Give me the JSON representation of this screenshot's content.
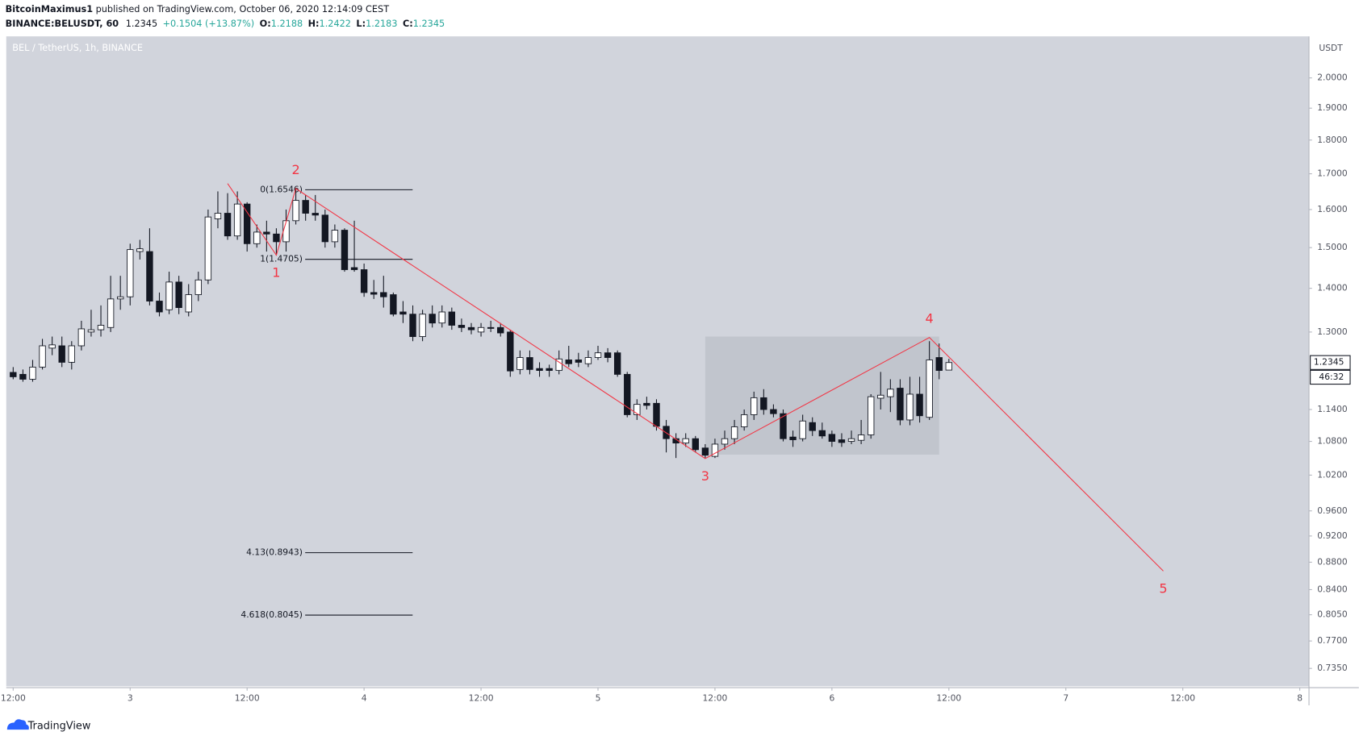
{
  "chart_data": {
    "type": "candlestick",
    "header": {
      "author": "BitcoinMaximus1",
      "published": " published on TradingView.com, October 06, 2020 12:14:09 CEST",
      "symbol": "BINANCE:BELUSDT, 60",
      "last": "1.2345",
      "change": "+0.1504 (+13.87%)",
      "ohlc": [
        {
          "key": "O:",
          "value": "1.2188"
        },
        {
          "key": "H:",
          "value": "1.2422"
        },
        {
          "key": "L:",
          "value": "1.2183"
        },
        {
          "key": "C:",
          "value": "1.2345"
        }
      ]
    },
    "title": "BEL / TetherUS, 1h, BINANCE",
    "y_unit": "USDT",
    "footer": "TradingView",
    "log_scale": true,
    "up_color": "#ffffff",
    "down_color": "#131722",
    "background": "#d1d4dc",
    "xlim": [
      -0.71,
      132.9
    ],
    "xticks": [
      {
        "value": 0,
        "label": "12:00"
      },
      {
        "value": 12,
        "label": "3"
      },
      {
        "value": 24,
        "label": "12:00"
      },
      {
        "value": 36,
        "label": "4"
      },
      {
        "value": 48,
        "label": "12:00"
      },
      {
        "value": 60,
        "label": "5"
      },
      {
        "value": 72,
        "label": "12:00"
      },
      {
        "value": 84,
        "label": "6"
      },
      {
        "value": 96,
        "label": "12:00"
      },
      {
        "value": 108,
        "label": "7"
      },
      {
        "value": 120,
        "label": "12:00"
      },
      {
        "value": 132,
        "label": "8"
      }
    ],
    "ylim": [
      0.713,
      2.146
    ],
    "yticks": [
      {
        "value": 2,
        "label": "2.0000"
      },
      {
        "value": 1.9,
        "label": "1.9000"
      },
      {
        "value": 1.8,
        "label": "1.8000"
      },
      {
        "value": 1.7,
        "label": "1.7000"
      },
      {
        "value": 1.6,
        "label": "1.6000"
      },
      {
        "value": 1.5,
        "label": "1.5000"
      },
      {
        "value": 1.4,
        "label": "1.4000"
      },
      {
        "value": 1.3,
        "label": "1.3000"
      },
      {
        "value": 1.14,
        "label": "1.1400"
      },
      {
        "value": 1.08,
        "label": "1.0800"
      },
      {
        "value": 1.02,
        "label": "1.0200"
      },
      {
        "value": 0.96,
        "label": "0.9600"
      },
      {
        "value": 0.92,
        "label": "0.9200"
      },
      {
        "value": 0.88,
        "label": "0.8800"
      },
      {
        "value": 0.84,
        "label": "0.8400"
      },
      {
        "value": 0.805,
        "label": "0.8050"
      },
      {
        "value": 0.77,
        "label": "0.7700"
      },
      {
        "value": 0.735,
        "label": "0.7350"
      }
    ],
    "open": [
      1.214,
      1.21,
      1.2,
      1.225,
      1.265,
      1.27,
      1.235,
      1.27,
      1.3,
      1.305,
      1.31,
      1.375,
      1.38,
      1.49,
      1.49,
      1.37,
      1.35,
      1.415,
      1.345,
      1.385,
      1.42,
      1.575,
      1.59,
      1.53,
      1.615,
      1.51,
      1.54,
      1.535,
      1.515,
      1.57,
      1.625,
      1.59,
      1.585,
      1.515,
      1.545,
      1.45,
      1.445,
      1.39,
      1.39,
      1.385,
      1.345,
      1.34,
      1.29,
      1.34,
      1.32,
      1.345,
      1.315,
      1.31,
      1.3,
      1.31,
      1.31,
      1.3,
      1.22,
      1.245,
      1.222,
      1.222,
      1.218,
      1.24,
      1.24,
      1.232,
      1.245,
      1.255,
      1.255,
      1.21,
      1.13,
      1.152,
      1.152,
      1.108,
      1.085,
      1.077,
      1.085,
      1.068,
      1.053,
      1.075,
      1.085,
      1.107,
      1.13,
      1.163,
      1.14,
      1.132,
      1.088,
      1.085,
      1.115,
      1.1,
      1.093,
      1.083,
      1.08,
      1.082,
      1.092,
      1.162,
      1.165,
      1.182,
      1.12,
      1.17,
      1.125,
      1.245,
      1.2188
    ],
    "high": [
      1.225,
      1.22,
      1.24,
      1.285,
      1.29,
      1.29,
      1.28,
      1.325,
      1.35,
      1.36,
      1.43,
      1.43,
      1.51,
      1.52,
      1.55,
      1.39,
      1.44,
      1.43,
      1.41,
      1.44,
      1.6,
      1.65,
      1.645,
      1.65,
      1.62,
      1.56,
      1.57,
      1.55,
      1.6,
      1.66,
      1.64,
      1.64,
      1.6,
      1.56,
      1.55,
      1.57,
      1.46,
      1.42,
      1.43,
      1.39,
      1.37,
      1.36,
      1.35,
      1.36,
      1.36,
      1.355,
      1.33,
      1.32,
      1.32,
      1.325,
      1.32,
      1.305,
      1.26,
      1.26,
      1.235,
      1.23,
      1.26,
      1.27,
      1.255,
      1.26,
      1.27,
      1.265,
      1.26,
      1.215,
      1.16,
      1.165,
      1.16,
      1.12,
      1.095,
      1.095,
      1.09,
      1.075,
      1.085,
      1.1,
      1.12,
      1.14,
      1.175,
      1.18,
      1.15,
      1.14,
      1.1,
      1.13,
      1.125,
      1.115,
      1.1,
      1.095,
      1.1,
      1.12,
      1.17,
      1.215,
      1.2,
      1.2,
      1.205,
      1.205,
      1.28,
      1.275,
      1.2422
    ],
    "low": [
      1.2,
      1.195,
      1.195,
      1.22,
      1.25,
      1.225,
      1.22,
      1.26,
      1.29,
      1.29,
      1.3,
      1.35,
      1.36,
      1.47,
      1.36,
      1.335,
      1.34,
      1.34,
      1.335,
      1.37,
      1.41,
      1.55,
      1.52,
      1.52,
      1.49,
      1.5,
      1.49,
      1.48,
      1.49,
      1.56,
      1.57,
      1.57,
      1.5,
      1.5,
      1.44,
      1.44,
      1.38,
      1.375,
      1.355,
      1.335,
      1.32,
      1.28,
      1.28,
      1.31,
      1.31,
      1.305,
      1.3,
      1.295,
      1.29,
      1.3,
      1.29,
      1.205,
      1.21,
      1.21,
      1.205,
      1.205,
      1.21,
      1.225,
      1.225,
      1.225,
      1.24,
      1.235,
      1.205,
      1.125,
      1.12,
      1.14,
      1.1,
      1.06,
      1.05,
      1.07,
      1.06,
      1.05,
      1.05,
      1.065,
      1.075,
      1.1,
      1.12,
      1.13,
      1.125,
      1.08,
      1.07,
      1.08,
      1.09,
      1.085,
      1.07,
      1.07,
      1.075,
      1.075,
      1.085,
      1.14,
      1.135,
      1.11,
      1.11,
      1.115,
      1.12,
      1.2,
      1.2183
    ],
    "close": [
      1.205,
      1.2,
      1.225,
      1.27,
      1.272,
      1.235,
      1.27,
      1.307,
      1.305,
      1.315,
      1.375,
      1.38,
      1.495,
      1.497,
      1.37,
      1.345,
      1.415,
      1.355,
      1.385,
      1.42,
      1.58,
      1.59,
      1.53,
      1.615,
      1.51,
      1.54,
      1.535,
      1.515,
      1.57,
      1.625,
      1.59,
      1.585,
      1.515,
      1.545,
      1.445,
      1.445,
      1.39,
      1.386,
      1.38,
      1.34,
      1.34,
      1.29,
      1.34,
      1.32,
      1.345,
      1.315,
      1.31,
      1.305,
      1.31,
      1.308,
      1.298,
      1.217,
      1.245,
      1.22,
      1.218,
      1.218,
      1.242,
      1.232,
      1.235,
      1.245,
      1.255,
      1.245,
      1.21,
      1.13,
      1.15,
      1.148,
      1.108,
      1.085,
      1.077,
      1.085,
      1.065,
      1.055,
      1.075,
      1.085,
      1.107,
      1.13,
      1.163,
      1.14,
      1.132,
      1.085,
      1.083,
      1.118,
      1.1,
      1.09,
      1.08,
      1.078,
      1.085,
      1.092,
      1.165,
      1.168,
      1.18,
      1.12,
      1.17,
      1.128,
      1.24,
      1.218,
      1.2345
    ],
    "fib_levels": [
      {
        "label": "0(1.6546)",
        "value": 1.6546
      },
      {
        "label": "1(1.4705)",
        "value": 1.4705
      },
      {
        "label": "4.13(0.8943)",
        "value": 0.8943
      },
      {
        "label": "4.618(0.8045)",
        "value": 0.8045
      }
    ],
    "wave": {
      "x": [
        22,
        27,
        29,
        71,
        94,
        118
      ],
      "y": [
        1.672,
        1.481,
        1.658,
        1.049,
        1.288,
        0.867
      ],
      "color": "#f23645"
    },
    "wave_labels": [
      "1",
      "2",
      "3",
      "4",
      "5"
    ],
    "zone": {
      "x": [
        71,
        95
      ],
      "y": [
        1.056,
        1.29
      ]
    },
    "price_tag": {
      "value": 1.2345,
      "label": "1.2345"
    },
    "countdown": "46:32"
  }
}
